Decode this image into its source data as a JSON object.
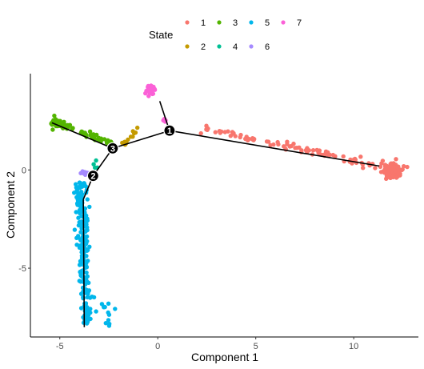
{
  "chart_data": {
    "type": "scatter",
    "xlabel": "Component 1",
    "ylabel": "Component 2",
    "xlim": [
      -6.5,
      13.3
    ],
    "ylim": [
      -8.5,
      4.9
    ],
    "x_ticks": [
      -5,
      0,
      5,
      10
    ],
    "y_ticks": [
      -5,
      0
    ],
    "grid": false,
    "legend": {
      "title": "State",
      "placement": "top",
      "entries": [
        {
          "label": "1",
          "color": "#F8766D"
        },
        {
          "label": "2",
          "color": "#C49A00"
        },
        {
          "label": "3",
          "color": "#53B400"
        },
        {
          "label": "4",
          "color": "#00C094"
        },
        {
          "label": "5",
          "color": "#00B6EB"
        },
        {
          "label": "6",
          "color": "#A58AFF"
        },
        {
          "label": "7",
          "color": "#FB61D7"
        }
      ]
    },
    "series": [
      {
        "name": "1",
        "color": "#F8766D",
        "clusters": [
          {
            "from": [
              2.0,
              2.2
            ],
            "to": [
              11.3,
              0.2
            ],
            "n": 85,
            "jitter": [
              0.12,
              0.1
            ]
          },
          {
            "center": [
              12.0,
              0.0
            ],
            "spread": [
              0.3,
              0.22
            ],
            "n": 90
          }
        ]
      },
      {
        "name": "2",
        "color": "#C49A00",
        "clusters": [
          {
            "from": [
              -1.9,
              1.2
            ],
            "to": [
              -0.9,
              2.2
            ],
            "n": 14,
            "jitter": [
              0.08,
              0.08
            ]
          }
        ]
      },
      {
        "name": "3",
        "color": "#53B400",
        "clusters": [
          {
            "from": [
              -5.4,
              2.5
            ],
            "to": [
              -2.3,
              1.3
            ],
            "n": 70,
            "jitter": [
              0.06,
              0.07
            ]
          },
          {
            "center": [
              -5.3,
              2.4
            ],
            "spread": [
              0.1,
              0.12
            ],
            "n": 15
          }
        ]
      },
      {
        "name": "4",
        "color": "#00C094",
        "clusters": [
          {
            "center": [
              -3.15,
              0.25
            ],
            "spread": [
              0.06,
              0.12
            ],
            "n": 4
          }
        ]
      },
      {
        "name": "5",
        "color": "#00B6EB",
        "clusters": [
          {
            "from": [
              -3.95,
              -0.6
            ],
            "to": [
              -3.6,
              -7.8
            ],
            "n": 240,
            "jitter": [
              0.14,
              0.08
            ]
          },
          {
            "center": [
              -2.6,
              -7.2
            ],
            "spread": [
              0.3,
              0.35
            ],
            "n": 14
          }
        ]
      },
      {
        "name": "6",
        "color": "#A58AFF",
        "clusters": [
          {
            "center": [
              -3.65,
              -0.15
            ],
            "spread": [
              0.12,
              0.06
            ],
            "n": 16
          }
        ]
      },
      {
        "name": "7",
        "color": "#FB61D7",
        "clusters": [
          {
            "center": [
              -0.4,
              4.05
            ],
            "spread": [
              0.12,
              0.12
            ],
            "n": 28
          },
          {
            "center": [
              0.35,
              2.55
            ],
            "spread": [
              0.06,
              0.06
            ],
            "n": 6
          }
        ]
      }
    ],
    "trajectory": [
      {
        "from": [
          0.6,
          2.0
        ],
        "to": [
          0.1,
          3.5
        ]
      },
      {
        "from": [
          0.6,
          2.0
        ],
        "to": [
          11.3,
          0.2
        ]
      },
      {
        "from": [
          0.6,
          2.0
        ],
        "to": [
          -2.3,
          1.1
        ]
      },
      {
        "from": [
          -2.3,
          1.1
        ],
        "to": [
          -5.4,
          2.4
        ]
      },
      {
        "from": [
          -2.3,
          1.1
        ],
        "to": [
          -3.3,
          -0.3
        ]
      },
      {
        "from": [
          -3.3,
          -0.3
        ],
        "to": [
          -3.8,
          -1.5
        ]
      },
      {
        "from": [
          -3.8,
          -1.5
        ],
        "to": [
          -3.75,
          -8.0
        ]
      }
    ],
    "branch_points": [
      {
        "label": "1",
        "x": 0.6,
        "y": 2.0
      },
      {
        "label": "2",
        "x": -3.3,
        "y": -0.3
      },
      {
        "label": "3",
        "x": -2.3,
        "y": 1.1
      }
    ]
  }
}
